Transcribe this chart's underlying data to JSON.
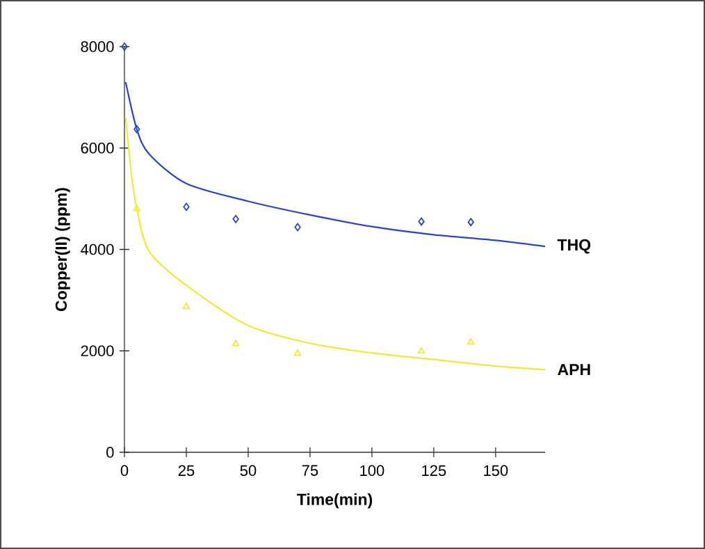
{
  "chart_data": {
    "type": "scatter",
    "xlabel": "Time(min)",
    "ylabel": "Copper(II) (ppm)",
    "xlim": [
      0,
      170
    ],
    "ylim": [
      0,
      8000
    ],
    "xticks": [
      0,
      25,
      50,
      75,
      100,
      125,
      150
    ],
    "yticks": [
      0,
      2000,
      4000,
      6000,
      8000
    ],
    "series": [
      {
        "color": "#2a44c8",
        "marker": "diamond",
        "x": [
          0,
          5,
          25,
          45,
          70,
          120,
          140
        ],
        "values": [
          8000,
          6370,
          4840,
          4600,
          4440,
          4550,
          4540
        ]
      },
      {
        "color": "#f2e838",
        "marker": "triangle",
        "x": [
          5,
          25,
          45,
          70,
          120,
          140
        ],
        "values": [
          4800,
          2870,
          2140,
          1950,
          1990,
          2170
        ]
      },
      {
        "type": "line",
        "name": "THQ",
        "color": "#2a44c8",
        "marker": "none",
        "x": [
          0.5,
          5,
          10,
          25,
          50,
          75,
          100,
          125,
          150,
          170
        ],
        "values": [
          7300,
          6370,
          5880,
          5300,
          4950,
          4680,
          4450,
          4290,
          4180,
          4060
        ]
      },
      {
        "type": "line",
        "name": "APH",
        "color": "#f2e838",
        "marker": "none",
        "x": [
          0.5,
          3,
          5,
          10,
          25,
          50,
          75,
          100,
          125,
          150,
          170
        ],
        "values": [
          6600,
          5400,
          4800,
          3960,
          3290,
          2500,
          2150,
          1960,
          1830,
          1700,
          1630
        ]
      }
    ]
  }
}
